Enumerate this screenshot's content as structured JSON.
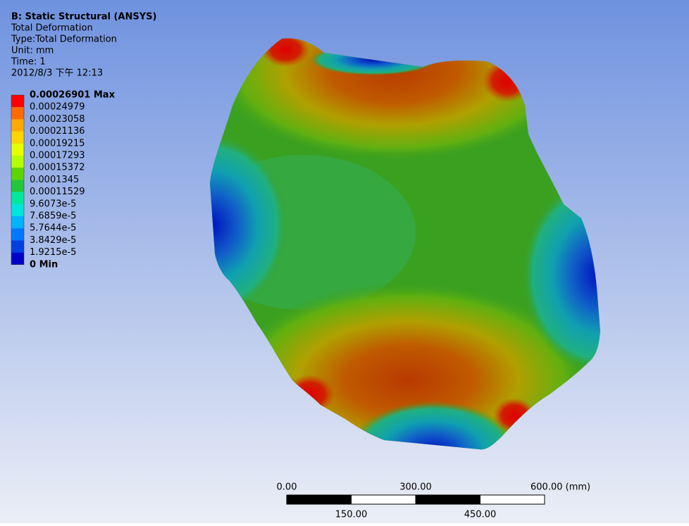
{
  "header": {
    "title": "B: Static Structural (ANSYS)",
    "lines": [
      "Total Deformation",
      "Type:Total Deformation",
      "Unit: mm",
      "Time: 1",
      "2012/8/3 下午 12:13"
    ]
  },
  "legend": {
    "labels": [
      "0.00026901 Max",
      "0.00024979",
      "0.00023058",
      "0.00021136",
      "0.00019215",
      "0.00017293",
      "0.00015372",
      "0.0001345",
      "0.00011529",
      "9.6073e-5",
      "7.6859e-5",
      "5.7644e-5",
      "3.8429e-5",
      "1.9215e-5",
      "0 Min"
    ],
    "colors": [
      "#ff0000",
      "#ff6a00",
      "#ffaa00",
      "#ffd400",
      "#e6ff00",
      "#b4ff00",
      "#5cd600",
      "#22c83a",
      "#00e89a",
      "#00e6dc",
      "#00b4ff",
      "#0078ff",
      "#0040e0",
      "#0000c8"
    ]
  },
  "scale_bar": {
    "top_labels": [
      "0.00",
      "300.00",
      "600.00 (mm)"
    ],
    "bottom_labels": [
      "150.00",
      "450.00"
    ]
  }
}
